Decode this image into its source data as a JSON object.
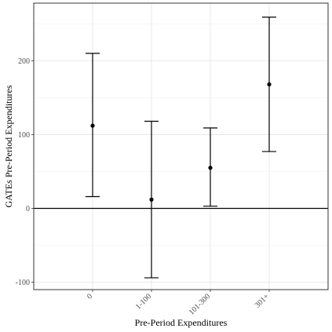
{
  "chart_data": {
    "type": "errorbar",
    "title": "",
    "xlabel": "Pre-Period Expenditures",
    "ylabel": "GATEs Pre-Period Expenditures",
    "categories": [
      "0",
      "1-100",
      "101-300",
      "301+"
    ],
    "estimates": [
      112,
      12,
      55,
      168
    ],
    "lower": [
      16,
      -94,
      3,
      77
    ],
    "upper": [
      210,
      118,
      109,
      259
    ],
    "ylim": [
      -110,
      278
    ],
    "yticks": [
      -100,
      0,
      100,
      200
    ],
    "reference_line": 0,
    "grid": true,
    "legend": "none"
  }
}
